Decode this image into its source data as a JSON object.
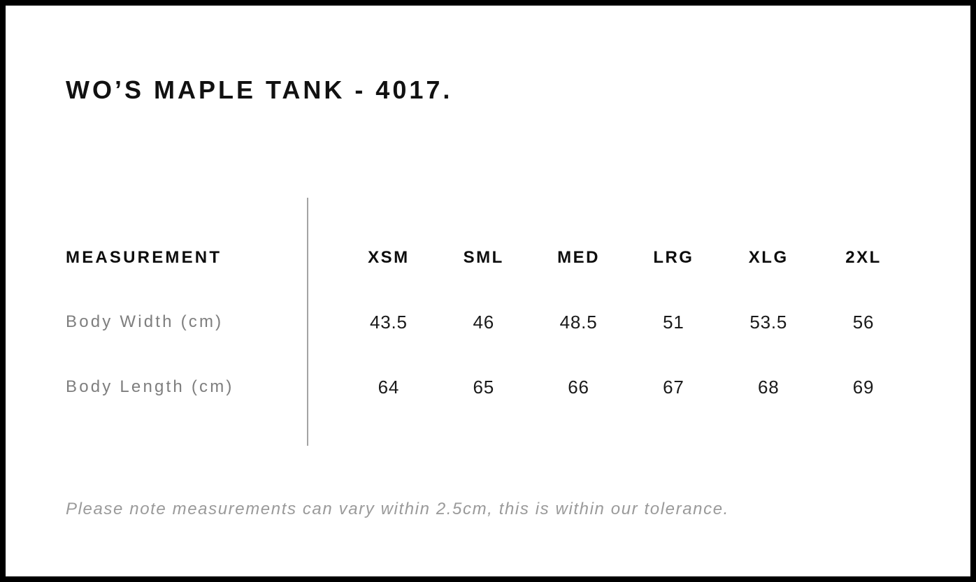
{
  "page": {
    "title": "WO’S MAPLE TANK - 4017.",
    "note": "Please note measurements can vary within 2.5cm, this is within our tolerance."
  },
  "table": {
    "header_label": "MEASUREMENT",
    "sizes": [
      "XSM",
      "SML",
      "MED",
      "LRG",
      "XLG",
      "2XL"
    ],
    "rows": [
      {
        "label": "Body Width (cm)",
        "values": [
          "43.5",
          "46",
          "48.5",
          "51",
          "53.5",
          "56"
        ]
      },
      {
        "label": "Body Length (cm)",
        "values": [
          "64",
          "65",
          "66",
          "67",
          "68",
          "69"
        ]
      }
    ]
  },
  "chart_data": {
    "type": "table",
    "title": "WO’S MAPLE TANK - 4017.",
    "columns": [
      "MEASUREMENT",
      "XSM",
      "SML",
      "MED",
      "LRG",
      "XLG",
      "2XL"
    ],
    "rows": [
      {
        "measurement": "Body Width (cm)",
        "values": [
          43.5,
          46,
          48.5,
          51,
          53.5,
          56
        ]
      },
      {
        "measurement": "Body Length (cm)",
        "values": [
          64,
          65,
          66,
          67,
          68,
          69
        ]
      }
    ],
    "footnote": "Please note measurements can vary within 2.5cm, this is within our tolerance."
  },
  "colors": {
    "background": "#ffffff",
    "frame": "#000000",
    "heading_text": "#0d0d0d",
    "value_text": "#1a1a1a",
    "label_text": "#7e7e7e",
    "note_text": "#9a9a9a",
    "divider": "#a3a3a3"
  }
}
